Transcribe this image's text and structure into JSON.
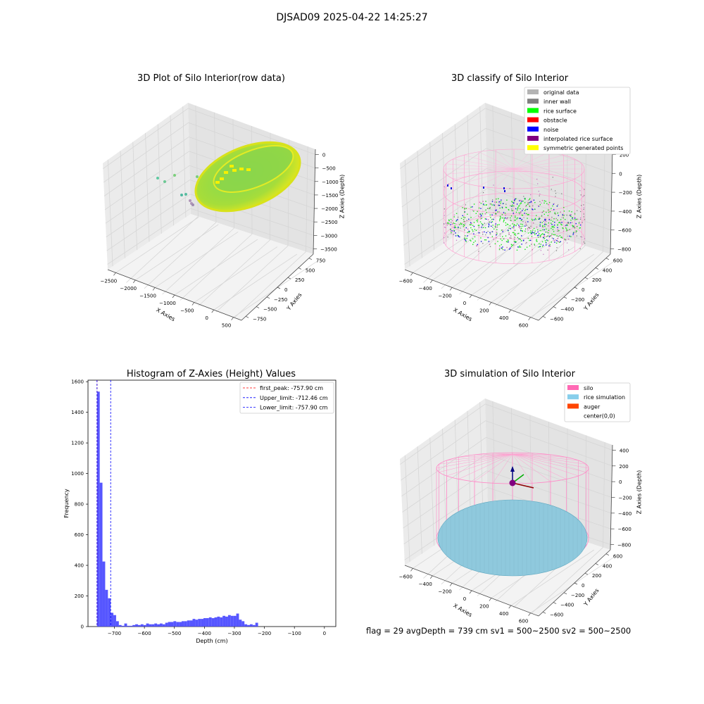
{
  "suptitle": "DJSAD09 2025-04-22 14:25:27",
  "footer": "flag = 29  avgDepth = 739 cm  sv1 = 500~2500  sv2 = 500~2500",
  "colors": {
    "original_data": "#b4b4b4",
    "inner_wall": "#808080",
    "rice_surface": "#00ff00",
    "obstacle": "#ff0000",
    "noise": "#0000ff",
    "interpolated": "#800080",
    "symmetric": "#ffff00",
    "silo": "#ff69b4",
    "rice_sim": "#87ceeb",
    "auger": "#ff4500",
    "hist_bar": "#4d4dff",
    "first_peak_line": "#ff0000",
    "limit_line": "#0000ff"
  },
  "chart_data": [
    {
      "type": "scatter",
      "subtype": "3d",
      "title": "3D Plot of Silo Interior(row data)",
      "xlabel": "X Axies",
      "ylabel": "Y Axies",
      "zlabel": "Z Axies (Depth)",
      "x_ticks": [
        "−2500",
        "−2000",
        "−1500",
        "−1000",
        "−500",
        "0",
        "500"
      ],
      "y_ticks": [
        "−750",
        "−500",
        "−250",
        "0",
        "250",
        "500",
        "750"
      ],
      "z_ticks": [
        "0",
        "−500",
        "−1000",
        "−1500",
        "−2000",
        "−2500",
        "−3000",
        "−3500"
      ],
      "grid": true,
      "colormap": "viridis-yellow"
    },
    {
      "type": "scatter",
      "subtype": "3d",
      "title": "3D classify of Silo Interior",
      "xlabel": "X Axies",
      "ylabel": "Y Axies",
      "zlabel": "Z Axies (Depth)",
      "x_ticks": [
        "−600",
        "−400",
        "−200",
        "0",
        "200",
        "400",
        "600"
      ],
      "y_ticks": [
        "−600",
        "−400",
        "−200",
        "0",
        "200",
        "400",
        "600"
      ],
      "z_ticks": [
        "200",
        "0",
        "−200",
        "−400",
        "−600",
        "−800"
      ],
      "z_top_partial": "00",
      "grid": true,
      "legend_position": "top-right",
      "legend": [
        "original data",
        "inner wall",
        "rice surface",
        "obstacle",
        "noise",
        "interpolated rice surface",
        "symmetric generated points"
      ]
    },
    {
      "type": "bar",
      "subtype": "histogram",
      "title": "Histogram of Z-Axies (Height) Values",
      "xlabel": "Depth (cm)",
      "ylabel": "Frequency",
      "x_ticks": [
        "−700",
        "−600",
        "−500",
        "−400",
        "−300",
        "−200",
        "−100",
        "0"
      ],
      "x_tick_values": [
        -700,
        -600,
        -500,
        -400,
        -300,
        -200,
        -100,
        0
      ],
      "y_ticks": [
        0,
        200,
        400,
        600,
        800,
        1000,
        1200,
        1400,
        1600
      ],
      "xlim": [
        -788,
        38
      ],
      "ylim": [
        0,
        1610
      ],
      "bin_width": 9.1,
      "bin_start": -758,
      "values": [
        1535,
        940,
        425,
        240,
        185,
        90,
        75,
        35,
        10,
        5,
        20,
        5,
        5,
        10,
        15,
        10,
        15,
        10,
        20,
        15,
        15,
        20,
        15,
        20,
        15,
        25,
        30,
        30,
        35,
        30,
        30,
        35,
        35,
        40,
        40,
        50,
        45,
        50,
        50,
        55,
        55,
        60,
        55,
        60,
        65,
        60,
        70,
        65,
        75,
        70,
        70,
        85,
        45,
        35,
        15,
        10,
        15,
        10,
        25
      ],
      "reference_lines": [
        {
          "label": "first_peak: -757.90 cm",
          "x": -757.9,
          "color": "#ff0000"
        },
        {
          "label": "Upper_limit: -712.46 cm",
          "x": -712.46,
          "color": "#0000ff"
        },
        {
          "label": "Lower_limit: -757.90 cm",
          "x": -757.9,
          "color": "#0000ff"
        }
      ],
      "legend_position": "top-right"
    },
    {
      "type": "scatter",
      "subtype": "3d",
      "title": "3D simulation of Silo Interior",
      "xlabel": "X Axies",
      "ylabel": "Y Axies",
      "zlabel": "Z Axies (Depth)",
      "x_ticks": [
        "−600",
        "−400",
        "−200",
        "0",
        "200",
        "400",
        "600"
      ],
      "y_ticks": [
        "−600",
        "−400",
        "−200",
        "0",
        "200",
        "400",
        "600"
      ],
      "z_ticks": [
        "400",
        "200",
        "0",
        "−200",
        "−400",
        "−600",
        "−800"
      ],
      "grid": true,
      "legend_position": "top-right",
      "legend": [
        "silo",
        "rice simulation",
        "auger",
        "center(0,0)"
      ]
    }
  ]
}
